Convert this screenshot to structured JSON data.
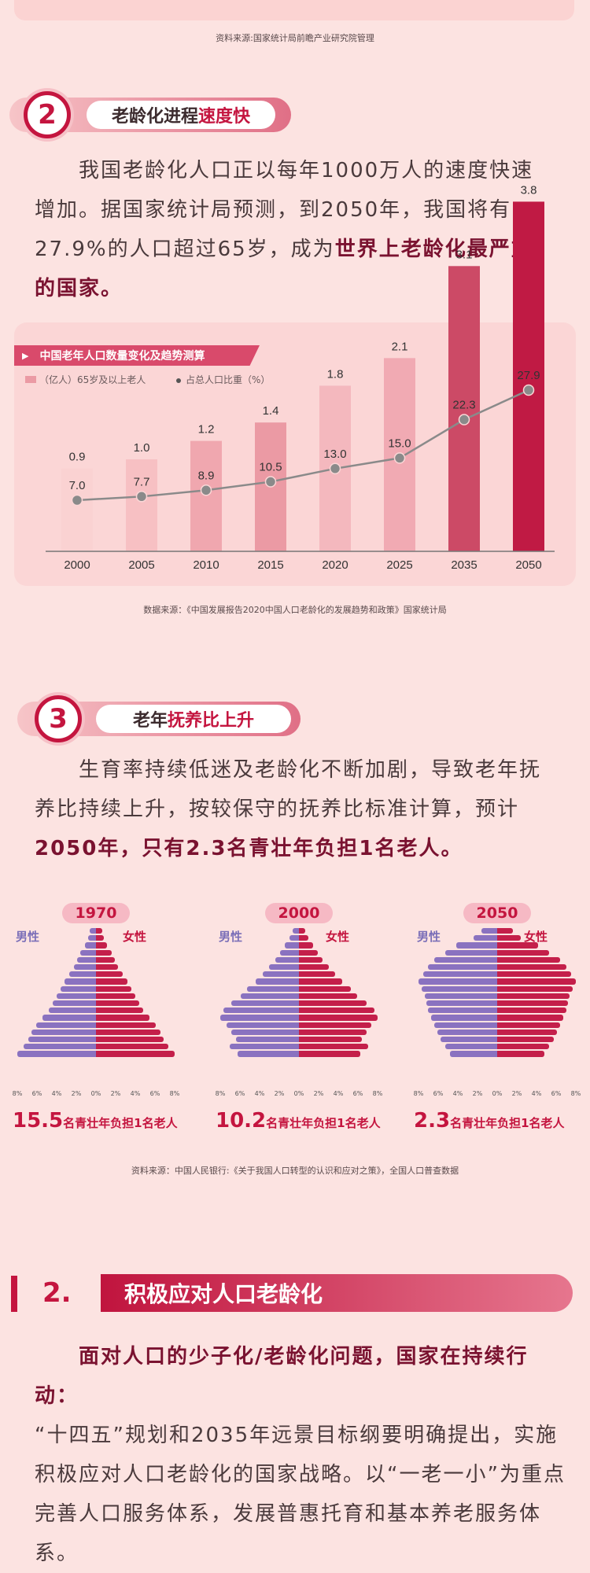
{
  "source_top": "资料来源:国家统计局前瞻产业研究院管理",
  "section2": {
    "number": "2",
    "title_a": "老龄化进程",
    "title_b": "速度快",
    "para_a": "我国老龄化人口正以每年1000万人的速度快速增加。据国家统计局预测，到2050年，我国将有27.9%的人口超过65岁，成为",
    "para_b": "世界上老龄化最严重的国家。"
  },
  "chart_tag": "中国老年人口数量变化及趋势测算",
  "legend_bar": "（亿人）65岁及以上老人",
  "legend_line": "占总人口比重（%）",
  "chart_data": {
    "type": "bar",
    "categories": [
      "2000",
      "2005",
      "2010",
      "2015",
      "2020",
      "2025",
      "2035",
      "2050"
    ],
    "series": [
      {
        "name": "（亿人）65岁及以上老人",
        "values": [
          0.9,
          1.0,
          1.2,
          1.4,
          1.8,
          2.1,
          3.1,
          3.8
        ]
      },
      {
        "name": "占总人口比重（%）",
        "values": [
          7.0,
          7.7,
          8.9,
          10.5,
          13.0,
          15.0,
          22.3,
          27.9
        ]
      }
    ],
    "bar_labels": [
      "0.9",
      "1.0",
      "1.2",
      "1.4",
      "1.8",
      "2.1",
      "3.1",
      "3.8"
    ],
    "line_labels": [
      "7.0",
      "7.7",
      "8.9",
      "10.5",
      "13.0",
      "15.0",
      "22.3",
      "27.9"
    ],
    "colors": [
      "#fad2d2",
      "#f7c0c3",
      "#f0a7af",
      "#eb9aa4",
      "#f4b8be",
      "#f1aab3",
      "#cc4a66",
      "#c01a44"
    ],
    "line_color": "#8a8a8a"
  },
  "chart_source": "数据来源：《中国发展报告2020中国人口老龄化的发展趋势和政策》国家统计局",
  "section3": {
    "number": "3",
    "title_a": "老年",
    "title_b": "抚养比上升",
    "para_a": "生育率持续低迷及老龄化不断加剧，导致老年抚养比持续上升，按较保守的抚养比标准计算，预计",
    "para_b": "2050年，只有2.3名青壮年负担1名老人。"
  },
  "pyramids": [
    {
      "year": "1970",
      "male": "男性",
      "female": "女性",
      "burden_num": "15.5",
      "burden_text": "名青壮年负担1名老人",
      "widths": [
        0.06,
        0.1,
        0.14,
        0.2,
        0.24,
        0.28,
        0.34,
        0.4,
        0.45,
        0.5,
        0.55,
        0.6,
        0.68,
        0.76,
        0.82,
        0.86,
        0.92,
        1.0
      ]
    },
    {
      "year": "2000",
      "male": "男性",
      "female": "女性",
      "burden_num": "10.2",
      "burden_text": "名青壮年负担1名老人",
      "widths": [
        0.08,
        0.12,
        0.18,
        0.24,
        0.3,
        0.38,
        0.46,
        0.55,
        0.66,
        0.74,
        0.86,
        0.96,
        1.0,
        0.92,
        0.86,
        0.8,
        0.88,
        0.78
      ]
    },
    {
      "year": "2050",
      "male": "男性",
      "female": "女性",
      "burden_num": "2.3",
      "burden_text": "名青壮年负担1名老人",
      "widths": [
        0.2,
        0.3,
        0.52,
        0.66,
        0.8,
        0.88,
        0.94,
        1.0,
        0.96,
        0.92,
        0.9,
        0.88,
        0.84,
        0.8,
        0.76,
        0.72,
        0.66,
        0.6
      ]
    }
  ],
  "pyramid_axis": [
    "8%",
    "6%",
    "4%",
    "2%",
    "0%",
    "2%",
    "4%",
    "6%",
    "8%"
  ],
  "pyramid_source": "资料来源：中国人民银行:《关于我国人口转型的认识和应对之策》，全国人口普查数据",
  "part2": {
    "number": "2.",
    "title": "积极应对人口老龄化",
    "lead": "面对人口的少子化/老龄化问题，国家在持续行动：",
    "body": "“十四五”规划和2035年远景目标纲要明确提出，实施积极应对人口老龄化的国家战略。以“一老一小”为重点完善人口服务体系，发展普惠托育和基本养老服务体系。"
  }
}
